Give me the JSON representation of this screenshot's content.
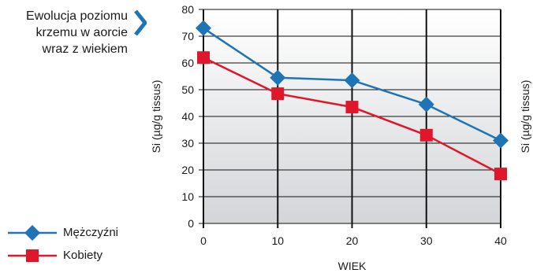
{
  "title": {
    "lines": [
      "Ewolucja poziomu",
      "krzemu w aorcie",
      "wraz z wiekiem"
    ]
  },
  "colors": {
    "accent": "#1f74b5",
    "men": "#1f74b5",
    "women": "#e0162b",
    "grid": "#111111",
    "plot_bg_top": "#ffffff",
    "plot_bg_bottom": "#d3d5d8"
  },
  "icons": {
    "title_arrow": "chevron-right-icon"
  },
  "chart_data": {
    "type": "line",
    "title": "Ewolucja poziomu krzemu w aorcie wraz z wiekiem",
    "xlabel": "WIEK",
    "ylabel": "Si (µg/g tissus)",
    "ylabel_right": "Si (µg/g tissus)",
    "x": [
      0,
      10,
      20,
      30,
      40
    ],
    "x_tick_labels": [
      "0",
      "10",
      "20",
      "30",
      "40"
    ],
    "xlim": [
      0,
      40
    ],
    "ylim": [
      0,
      80
    ],
    "y_ticks": [
      0,
      10,
      20,
      30,
      40,
      50,
      60,
      70,
      80
    ],
    "y_tick_labels": [
      "0",
      "10",
      "20",
      "30",
      "40",
      "50",
      "60",
      "70",
      "80"
    ],
    "grid": true,
    "legend_position": "bottom-left",
    "series": [
      {
        "name": "Mężczyźni",
        "marker": "diamond",
        "color": "#1f74b5",
        "values": [
          73,
          54.5,
          53.5,
          44.5,
          31
        ]
      },
      {
        "name": "Kobiety",
        "marker": "square",
        "color": "#e0162b",
        "values": [
          62,
          48.5,
          43.5,
          33,
          18.5
        ]
      }
    ]
  }
}
